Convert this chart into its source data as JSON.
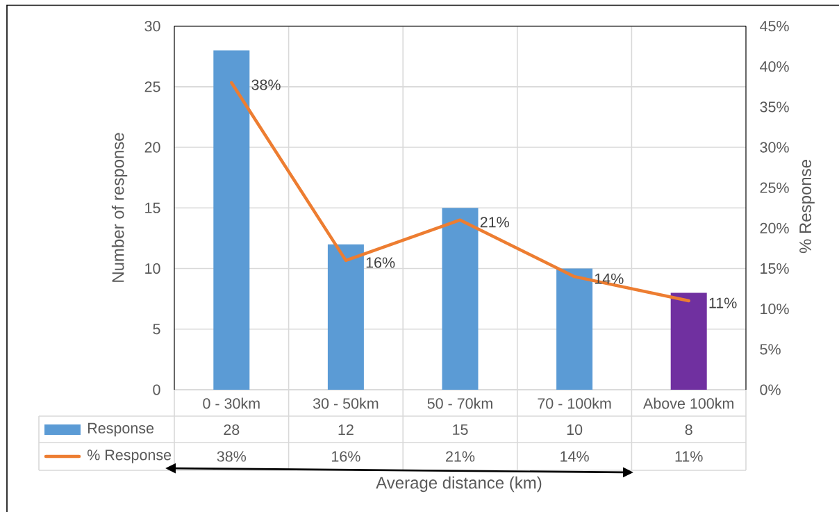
{
  "chart_data": {
    "type": "bar",
    "xlabel": "Average distance (km)",
    "ylabel": "Number of response",
    "y2label": "% Response",
    "categories": [
      "0 - 30km",
      "30 - 50km",
      "50 - 70km",
      "70 - 100km",
      "Above 100km"
    ],
    "series": [
      {
        "name": "Response",
        "colors": [
          "#5b9bd5",
          "#5b9bd5",
          "#5b9bd5",
          "#5b9bd5",
          "#7030a0"
        ],
        "values": [
          28,
          12,
          15,
          10,
          8
        ],
        "value_labels": [
          "28",
          "12",
          "15",
          "10",
          "8"
        ]
      },
      {
        "name": "% Response",
        "type": "line",
        "axis": "y2",
        "color": "#ed7d31",
        "line_style": "solid",
        "values": [
          38,
          16,
          21,
          14,
          11
        ],
        "value_labels": [
          "38%",
          "16%",
          "21%",
          "14%",
          "11%"
        ]
      }
    ],
    "ylim": [
      0,
      30
    ],
    "yticks": [
      0,
      5,
      10,
      15,
      20,
      25,
      30
    ],
    "y2lim": [
      0,
      45
    ],
    "y2ticks": [
      {
        "value": 0,
        "label": "0%"
      },
      {
        "value": 5,
        "label": "5%"
      },
      {
        "value": 10,
        "label": "10%"
      },
      {
        "value": 15,
        "label": "15%"
      },
      {
        "value": 20,
        "label": "20%"
      },
      {
        "value": 25,
        "label": "25%"
      },
      {
        "value": 30,
        "label": "30%"
      },
      {
        "value": 35,
        "label": "35%"
      },
      {
        "value": 40,
        "label": "40%"
      },
      {
        "value": 45,
        "label": "45%"
      }
    ],
    "grid": true,
    "legend": "bottom"
  }
}
